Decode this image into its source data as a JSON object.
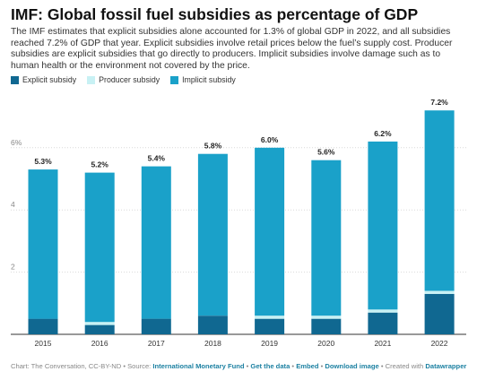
{
  "title": "IMF: Global fossil fuel subsidies as percentage of GDP",
  "description": "The IMF estimates that explicit subsidies alone accounted for 1.3% of global GDP in 2022, and all subsidies reached 7.2% of GDP that year. Explicit subsidies involve retail prices below the fuel’s supply cost. Producer subsidies are explicit subsidies that go directly to producers. Implicit subsidies involve damage such as to human health or the environment not covered by the price.",
  "colors": {
    "explicit": "#106891",
    "producer": "#c8f1f4",
    "implicit": "#1aa1c9",
    "grid": "#d9d9d9"
  },
  "footer": {
    "prefix": "Chart: The Conversation, CC-BY-ND • Source: ",
    "source_link": "International Monetary Fund",
    "sep1": " • ",
    "get_data": "Get the data",
    "sep2": " • ",
    "embed": "Embed",
    "sep3": " • ",
    "download": "Download image",
    "sep4": " • Created with ",
    "datawrapper": "Datawrapper"
  },
  "chart_data": {
    "type": "bar",
    "stacked": true,
    "title": "IMF: Global fossil fuel subsidies as percentage of GDP",
    "xlabel": "",
    "ylabel": "",
    "ylim": [
      0,
      7.5
    ],
    "y_ticks": [
      2,
      4,
      6
    ],
    "y_tick_labels": [
      "2",
      "4",
      "6%"
    ],
    "categories": [
      "2015",
      "2016",
      "2017",
      "2018",
      "2019",
      "2020",
      "2021",
      "2022"
    ],
    "series": [
      {
        "name": "Explicit subsidy",
        "values": [
          0.5,
          0.3,
          0.5,
          0.6,
          0.5,
          0.5,
          0.7,
          1.3
        ]
      },
      {
        "name": "Producer subsidy",
        "values": [
          0.0,
          0.1,
          0.0,
          0.0,
          0.1,
          0.1,
          0.1,
          0.1
        ]
      },
      {
        "name": "Implicit subsidy",
        "values": [
          4.8,
          4.8,
          4.9,
          5.2,
          5.4,
          5.0,
          5.4,
          5.8
        ]
      }
    ],
    "totals": [
      "5.3%",
      "5.2%",
      "5.4%",
      "5.8%",
      "6.0%",
      "5.6%",
      "6.2%",
      "7.2%"
    ],
    "total_values": [
      5.3,
      5.2,
      5.4,
      5.8,
      6.0,
      5.6,
      6.2,
      7.2
    ],
    "grid": true,
    "legend_position": "top-left"
  }
}
